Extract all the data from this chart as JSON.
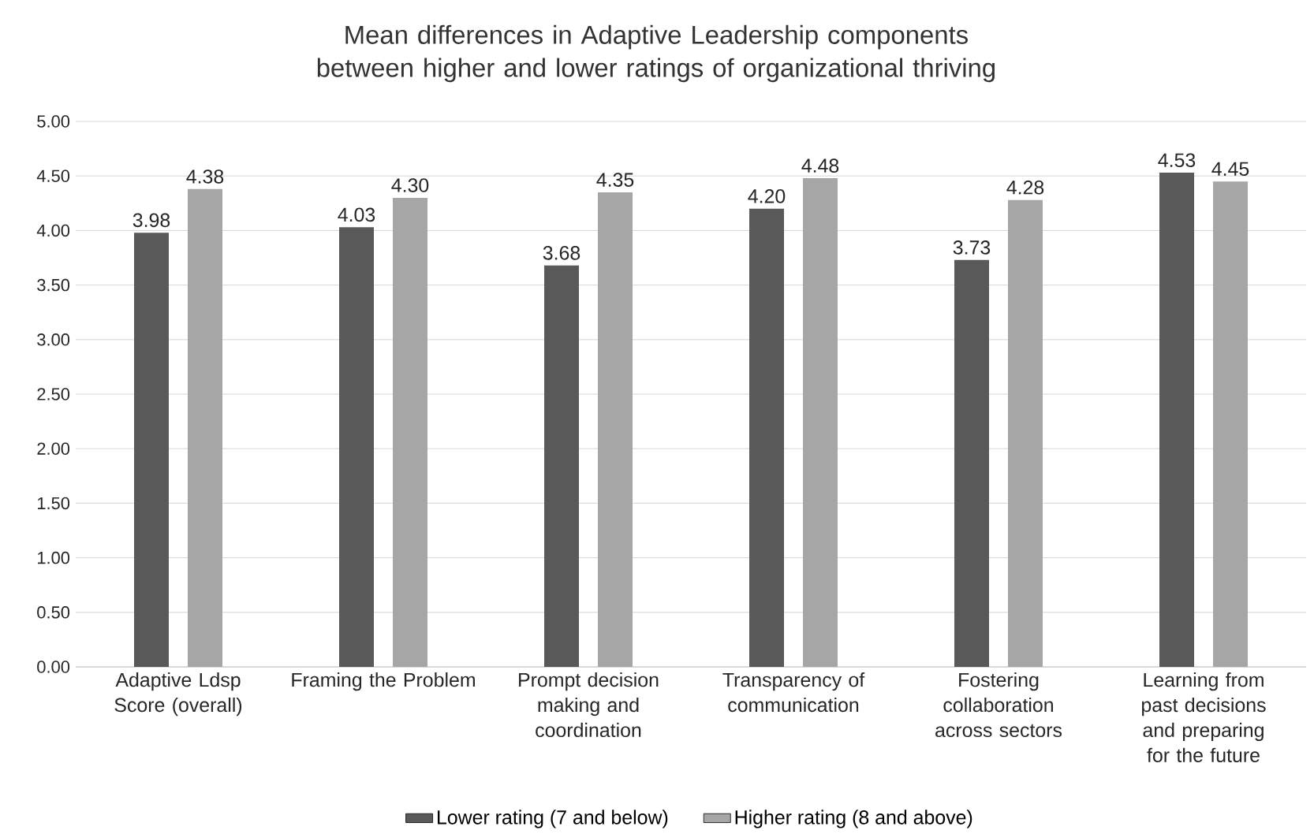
{
  "chart_data": {
    "type": "bar",
    "title": "Mean differences in Adaptive Leadership components between higher and lower ratings of organizational thriving",
    "categories": [
      "Adaptive Ldsp Score (overall)",
      "Framing the Problem",
      "Prompt decision making and coordination",
      "Transparency of communication",
      "Fostering collaboration across sectors",
      "Learning from past decisions and preparing for the future"
    ],
    "series": [
      {
        "name": "Lower rating (7 and below)",
        "color": "#595959",
        "values": [
          3.98,
          4.03,
          3.68,
          4.2,
          3.73,
          4.53
        ],
        "value_labels": [
          "3.98",
          "4.03",
          "3.68",
          "4.20",
          "3.73",
          "4.53"
        ]
      },
      {
        "name": "Higher rating (8 and above)",
        "color": "#a6a6a6",
        "values": [
          4.38,
          4.3,
          4.35,
          4.48,
          4.28,
          4.45
        ],
        "value_labels": [
          "4.38",
          "4.30",
          "4.35",
          "4.48",
          "4.28",
          "4.45"
        ]
      }
    ],
    "ylim": [
      0,
      5
    ],
    "yticks": [
      {
        "value": 0,
        "label": "0.00"
      },
      {
        "value": 0.5,
        "label": "0.50"
      },
      {
        "value": 1,
        "label": "1.00"
      },
      {
        "value": 1.5,
        "label": "1.50"
      },
      {
        "value": 2,
        "label": "2.00"
      },
      {
        "value": 2.5,
        "label": "2.50"
      },
      {
        "value": 3,
        "label": "3.00"
      },
      {
        "value": 3.5,
        "label": "3.50"
      },
      {
        "value": 4,
        "label": "4.00"
      },
      {
        "value": 4.5,
        "label": "4.50"
      },
      {
        "value": 5,
        "label": "5.00"
      }
    ],
    "grid": "y",
    "legend": "bottom"
  }
}
